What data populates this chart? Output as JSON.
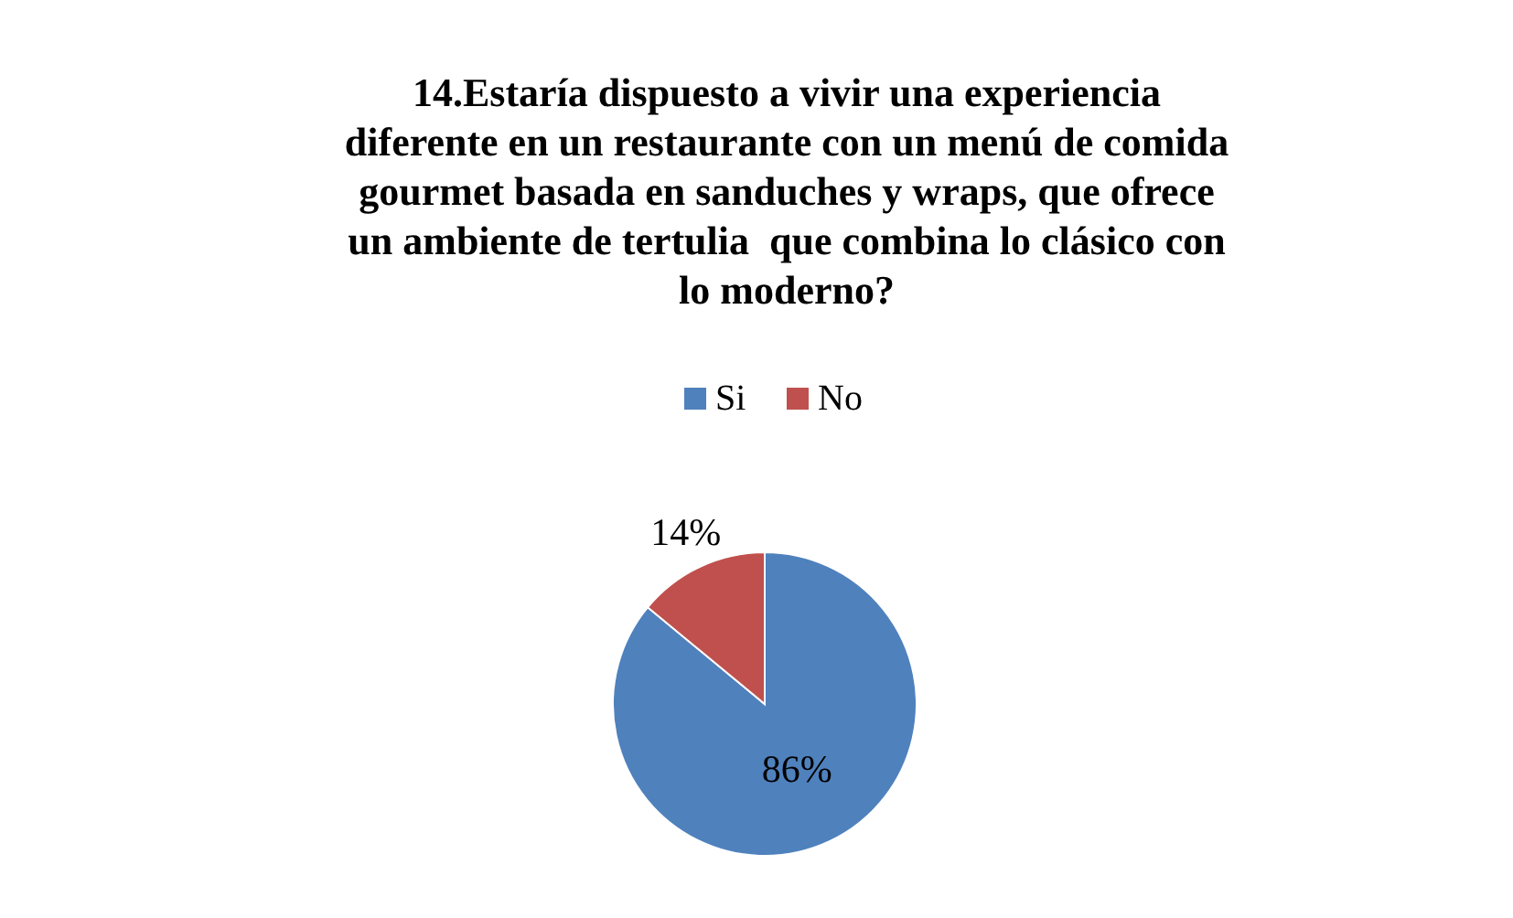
{
  "chart_data": {
    "type": "pie",
    "title": "14.Estaría dispuesto a vivir una experiencia\ndiferente en un restaurante con un menú de comida\ngourmet basada en sanduches y wraps, que ofrece\nun ambiente de tertulia  que combina lo clásico con\nlo moderno?",
    "categories": [
      "Si",
      "No"
    ],
    "values": [
      86,
      14
    ],
    "colors": [
      "#4f81bd",
      "#c0504d"
    ],
    "value_labels": [
      "86%",
      "14%"
    ],
    "legend": "top"
  }
}
